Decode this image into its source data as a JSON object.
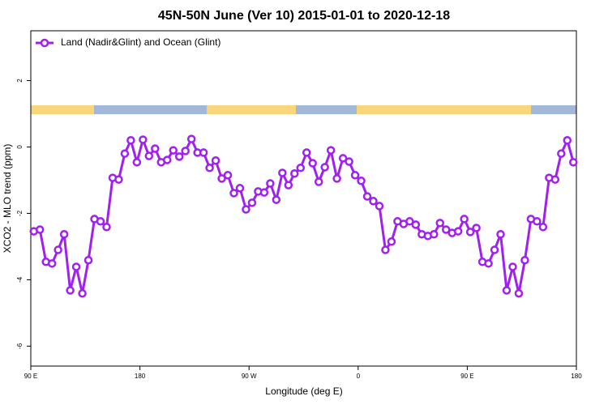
{
  "chart_data": {
    "type": "line",
    "title": "45N-50N June (Ver 10)   2015-01-01 to 2020-12-18",
    "x_label": "Longitude (deg E)",
    "y_label": "XCO2 - MLO trend (ppm)",
    "legend_position": "top-left",
    "xlim": [
      90,
      540
    ],
    "xticks": [
      {
        "value": 90,
        "label": "90 E"
      },
      {
        "value": 180,
        "label": "180"
      },
      {
        "value": 270,
        "label": "90 W"
      },
      {
        "value": 360,
        "label": "0"
      },
      {
        "value": 450,
        "label": "90 E"
      },
      {
        "value": 540,
        "label": "180"
      }
    ],
    "ylim": [
      -6.6,
      3.5
    ],
    "yticks": [
      -6,
      -4,
      -2,
      0,
      2
    ],
    "x": [
      92.5,
      97.5,
      102.5,
      107.5,
      112.5,
      117.5,
      122.5,
      127.5,
      132.5,
      137.5,
      142.5,
      147.5,
      152.5,
      157.5,
      162.5,
      167.5,
      172.5,
      177.5,
      182.5,
      187.5,
      192.5,
      197.5,
      202.5,
      207.5,
      212.5,
      217.5,
      222.5,
      227.5,
      232.5,
      237.5,
      242.5,
      247.5,
      252.5,
      257.5,
      262.5,
      267.5,
      272.5,
      277.5,
      282.5,
      287.5,
      292.5,
      297.5,
      302.5,
      307.5,
      312.5,
      317.5,
      322.5,
      327.5,
      332.5,
      337.5,
      342.5,
      347.5,
      352.5,
      357.5,
      362.5,
      367.5,
      372.5,
      377.5,
      382.5,
      387.5,
      392.5,
      397.5,
      402.5,
      407.5,
      412.5,
      417.5,
      422.5,
      427.5,
      432.5,
      437.5,
      442.5,
      447.5,
      452.5,
      457.5,
      462.5,
      467.5,
      472.5,
      477.5,
      482.5,
      487.5,
      492.5,
      497.5,
      502.5,
      507.5,
      512.5,
      517.5,
      522.5,
      527.5,
      532.5,
      537.5
    ],
    "series": [
      {
        "name": "Land (Nadir&Glint) and Ocean (Glint)",
        "color": "#a020f0",
        "values": [
          -2.54,
          -2.49,
          -3.46,
          -3.51,
          -3.1,
          -2.63,
          -4.32,
          -3.61,
          -4.41,
          -3.41,
          -2.17,
          -2.24,
          -2.41,
          -0.93,
          -0.98,
          -0.2,
          0.2,
          -0.46,
          0.22,
          -0.27,
          -0.05,
          -0.46,
          -0.39,
          -0.1,
          -0.29,
          -0.12,
          0.24,
          -0.17,
          -0.17,
          -0.63,
          -0.41,
          -0.95,
          -0.85,
          -1.39,
          -1.24,
          -1.88,
          -1.68,
          -1.34,
          -1.37,
          -1.1,
          -1.59,
          -0.78,
          -1.15,
          -0.8,
          -0.63,
          -0.17,
          -0.49,
          -1.05,
          -0.61,
          -0.1,
          -0.95,
          -0.34,
          -0.44,
          -0.85,
          -1.02,
          -1.49,
          -1.63,
          -1.78,
          -3.1,
          -2.85,
          -2.24,
          -2.32,
          -2.24,
          -2.34,
          -2.63,
          -2.68,
          -2.63,
          -2.29,
          -2.49,
          -2.59,
          -2.54,
          -2.17,
          -2.56,
          -2.44,
          -3.46,
          -3.51,
          -3.1,
          -2.63,
          -4.32,
          -3.61,
          -4.41,
          -3.41,
          -2.17,
          -2.24,
          -2.41,
          -0.93,
          -0.98,
          -0.2,
          0.2,
          -0.46
        ]
      }
    ]
  }
}
